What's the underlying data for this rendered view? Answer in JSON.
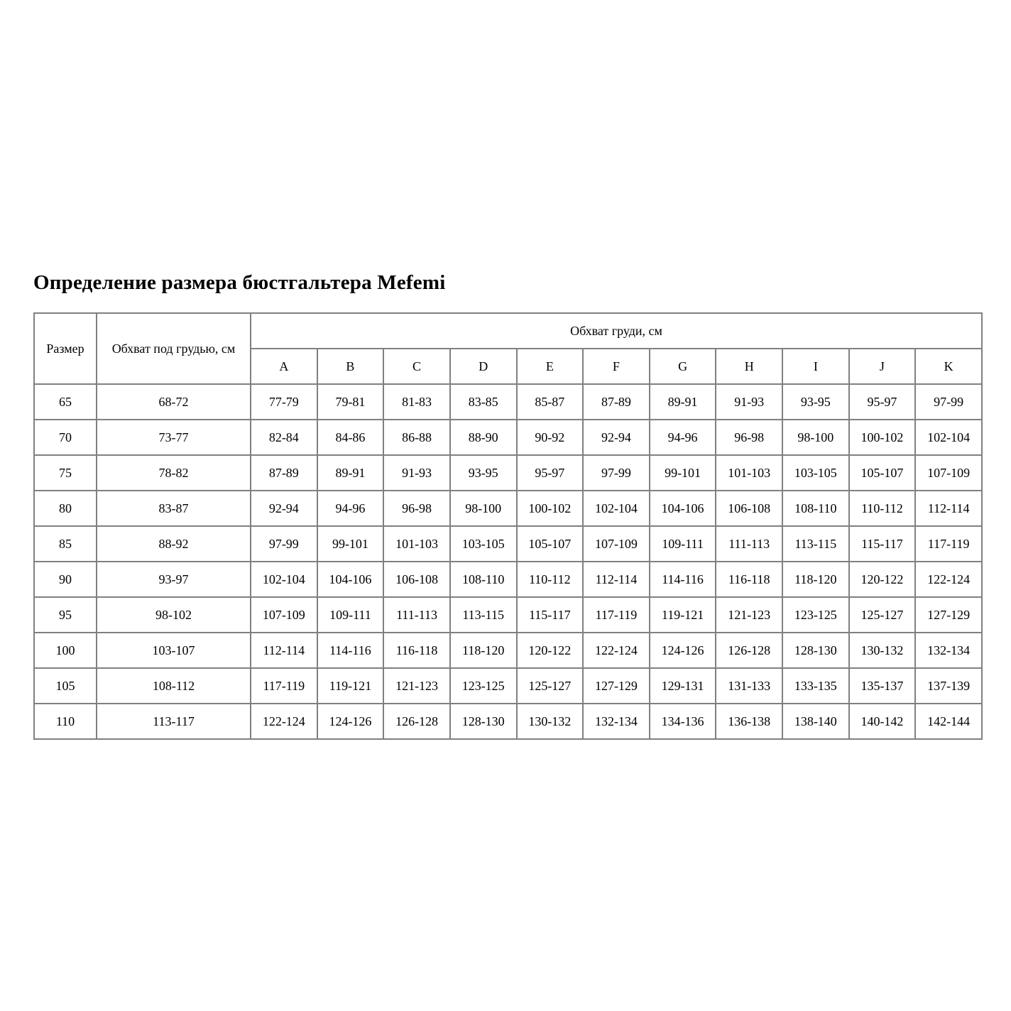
{
  "page": {
    "title": "Определение размера бюстгальтера Mefemi"
  },
  "table": {
    "header": {
      "size_label": "Размер",
      "underbust_label": "Обхват под грудью, см",
      "bust_label": "Обхват груди, см",
      "cup_labels": [
        "A",
        "B",
        "C",
        "D",
        "E",
        "F",
        "G",
        "H",
        "I",
        "J",
        "K"
      ]
    },
    "rows": [
      {
        "size": "65",
        "underbust": "68-72",
        "cups": [
          "77-79",
          "79-81",
          "81-83",
          "83-85",
          "85-87",
          "87-89",
          "89-91",
          "91-93",
          "93-95",
          "95-97",
          "97-99"
        ]
      },
      {
        "size": "70",
        "underbust": "73-77",
        "cups": [
          "82-84",
          "84-86",
          "86-88",
          "88-90",
          "90-92",
          "92-94",
          "94-96",
          "96-98",
          "98-100",
          "100-102",
          "102-104"
        ]
      },
      {
        "size": "75",
        "underbust": "78-82",
        "cups": [
          "87-89",
          "89-91",
          "91-93",
          "93-95",
          "95-97",
          "97-99",
          "99-101",
          "101-103",
          "103-105",
          "105-107",
          "107-109"
        ]
      },
      {
        "size": "80",
        "underbust": "83-87",
        "cups": [
          "92-94",
          "94-96",
          "96-98",
          "98-100",
          "100-102",
          "102-104",
          "104-106",
          "106-108",
          "108-110",
          "110-112",
          "112-114"
        ]
      },
      {
        "size": "85",
        "underbust": "88-92",
        "cups": [
          "97-99",
          "99-101",
          "101-103",
          "103-105",
          "105-107",
          "107-109",
          "109-111",
          "111-113",
          "113-115",
          "115-117",
          "117-119"
        ]
      },
      {
        "size": "90",
        "underbust": "93-97",
        "cups": [
          "102-104",
          "104-106",
          "106-108",
          "108-110",
          "110-112",
          "112-114",
          "114-116",
          "116-118",
          "118-120",
          "120-122",
          "122-124"
        ]
      },
      {
        "size": "95",
        "underbust": "98-102",
        "cups": [
          "107-109",
          "109-111",
          "111-113",
          "113-115",
          "115-117",
          "117-119",
          "119-121",
          "121-123",
          "123-125",
          "125-127",
          "127-129"
        ]
      },
      {
        "size": "100",
        "underbust": "103-107",
        "cups": [
          "112-114",
          "114-116",
          "116-118",
          "118-120",
          "120-122",
          "122-124",
          "124-126",
          "126-128",
          "128-130",
          "130-132",
          "132-134"
        ]
      },
      {
        "size": "105",
        "underbust": "108-112",
        "cups": [
          "117-119",
          "119-121",
          "121-123",
          "123-125",
          "125-127",
          "127-129",
          "129-131",
          "131-133",
          "133-135",
          "135-137",
          "137-139"
        ]
      },
      {
        "size": "110",
        "underbust": "113-117",
        "cups": [
          "122-124",
          "124-126",
          "126-128",
          "128-130",
          "130-132",
          "132-134",
          "134-136",
          "136-138",
          "138-140",
          "140-142",
          "142-144"
        ]
      }
    ]
  }
}
